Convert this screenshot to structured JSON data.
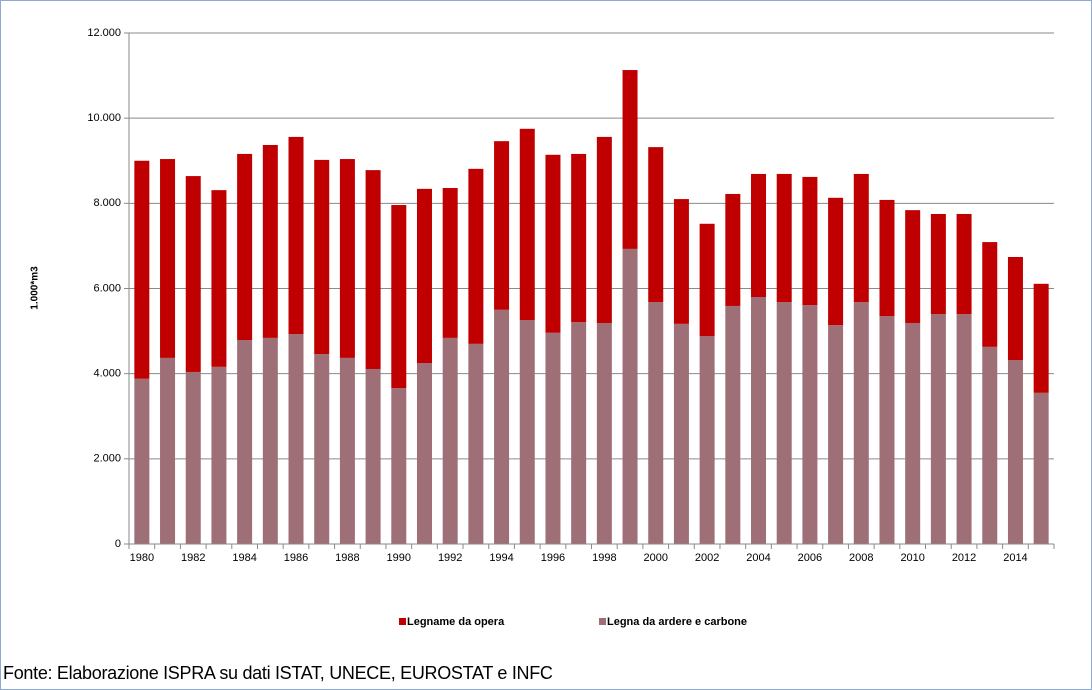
{
  "chart_data": {
    "type": "stacked_bar",
    "y_label": "1.000*m3",
    "source": "Fonte: Elaborazione ISPRA su dati ISTAT, UNECE, EUROSTAT e INFC",
    "categories": [
      "1980",
      null,
      "1982",
      null,
      "1984",
      null,
      "1986",
      null,
      "1988",
      null,
      "1990",
      null,
      "1992",
      null,
      "1994",
      null,
      "1996",
      null,
      "1998",
      null,
      "2000",
      null,
      "2002",
      null,
      "2004",
      null,
      "2006",
      null,
      "2008",
      null,
      "2010",
      null,
      "2012",
      null,
      "2014",
      null
    ],
    "series": [
      {
        "name": "Legname da opera",
        "color": "#c00000",
        "values": [
          5120,
          4670,
          4600,
          4150,
          4370,
          4530,
          4630,
          4560,
          4670,
          4670,
          4300,
          4090,
          3520,
          4110,
          3960,
          4490,
          4180,
          3950,
          4370,
          4200,
          3640,
          2930,
          2640,
          2630,
          2890,
          3010,
          3010,
          2990,
          3010,
          2730,
          2650,
          2350,
          2350,
          2460,
          2420,
          2560
        ]
      },
      {
        "name": "Legna da ardere e carbone",
        "color": "#9e6f76",
        "values": [
          3880,
          4370,
          4040,
          4160,
          4790,
          4840,
          4930,
          4460,
          4370,
          4110,
          3660,
          4250,
          4840,
          4700,
          5500,
          5260,
          4960,
          5210,
          5190,
          6930,
          5680,
          5170,
          4880,
          5590,
          5800,
          5680,
          5610,
          5140,
          5680,
          5350,
          5190,
          5400,
          5400,
          4630,
          4320,
          3550
        ]
      }
    ],
    "ylim": [
      0,
      12000
    ],
    "yticks": [
      0,
      {
        "value": 2000,
        "label": "2.000"
      },
      {
        "value": 4000,
        "label": "4.000"
      },
      {
        "value": 6000,
        "label": "6.000"
      },
      {
        "value": 8000,
        "label": "8.000"
      },
      {
        "value": 10000,
        "label": "10.000"
      },
      {
        "value": 12000,
        "label": "12.000"
      }
    ],
    "grid": true,
    "legend": "bottom"
  }
}
